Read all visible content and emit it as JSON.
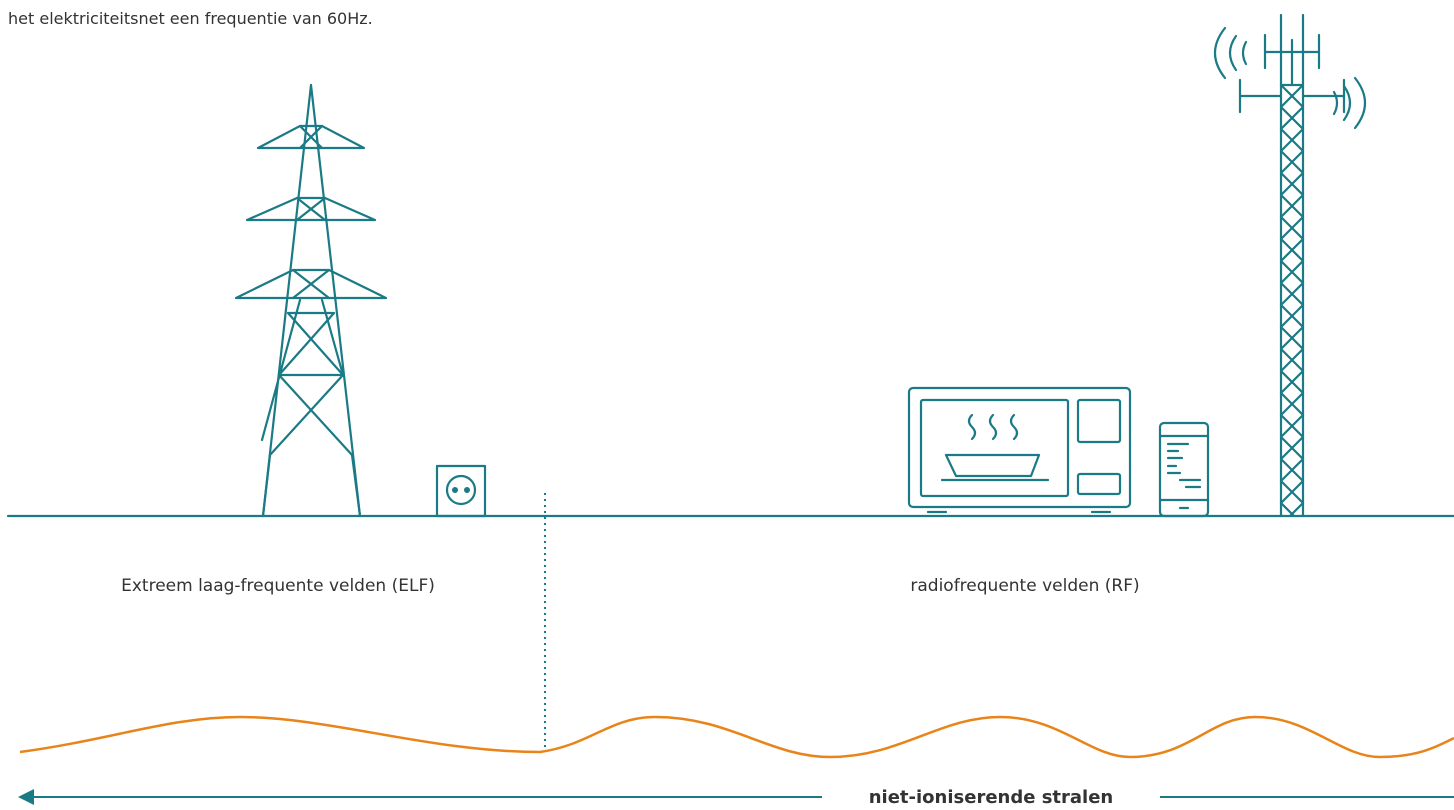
{
  "intro": {
    "text": "het elektriciteitsnet een frequentie van 60Hz."
  },
  "regions": [
    {
      "label": "Extreem laag-frequente velden (ELF)"
    },
    {
      "label": "radiofrequente velden (RF)"
    }
  ],
  "axis": {
    "label": "niet-ioniserende stralen"
  }
}
